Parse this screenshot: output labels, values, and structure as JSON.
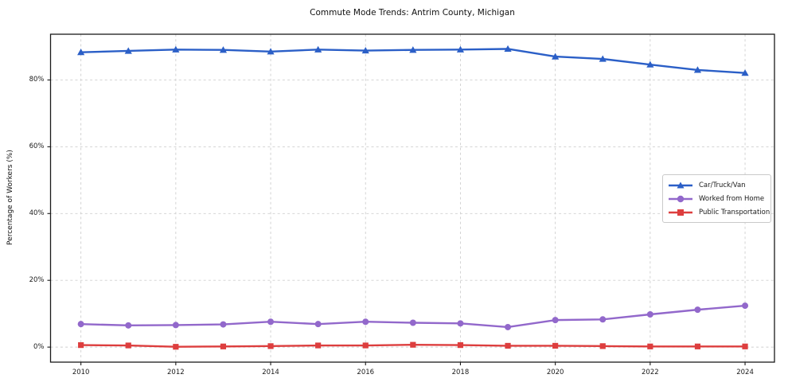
{
  "figure": {
    "title": "Commute Mode Trends: Antrim County, Michigan"
  },
  "chart_data": {
    "type": "line",
    "title": "Commute Mode Trends: Antrim County, Michigan",
    "xlabel": "",
    "ylabel": "Percentage of Workers (%)",
    "x": [
      2010,
      2011,
      2012,
      2013,
      2014,
      2015,
      2016,
      2017,
      2018,
      2019,
      2020,
      2021,
      2022,
      2023,
      2024
    ],
    "series": [
      {
        "name": "Car/Truck/Van",
        "color": "#2b5fc7",
        "marker": "triangle",
        "values": [
          88.3,
          88.7,
          89.1,
          89.0,
          88.5,
          89.1,
          88.8,
          89.0,
          89.1,
          89.3,
          87.0,
          86.3,
          84.6,
          83.0,
          82.1
        ]
      },
      {
        "name": "Worked from Home",
        "color": "#9268cb",
        "marker": "circle",
        "values": [
          6.9,
          6.5,
          6.6,
          6.8,
          7.6,
          6.9,
          7.6,
          7.3,
          7.1,
          6.0,
          8.1,
          8.3,
          9.8,
          11.2,
          12.4
        ]
      },
      {
        "name": "Public Transportation",
        "color": "#dd3e3e",
        "marker": "square",
        "values": [
          0.6,
          0.5,
          0.1,
          0.2,
          0.3,
          0.5,
          0.5,
          0.7,
          0.6,
          0.4,
          0.4,
          0.3,
          0.2,
          0.2,
          0.2
        ]
      }
    ],
    "xticks": {
      "values": [
        2010,
        2012,
        2014,
        2016,
        2018,
        2020,
        2022,
        2024
      ],
      "labels": [
        "2010",
        "2012",
        "2014",
        "2016",
        "2018",
        "2020",
        "2022",
        "2024"
      ]
    },
    "yticks": {
      "values": [
        0,
        20,
        40,
        60,
        80
      ],
      "labels": [
        "0%",
        "20%",
        "40%",
        "60%",
        "80%"
      ]
    },
    "xlim": [
      2009.36,
      2024.62
    ],
    "ylim": [
      -4.5,
      93.7
    ],
    "grid": "dashed",
    "legend_position": "center-right"
  },
  "colors": {
    "grid": "#cfcfcf",
    "axis_border": "#1a1a1a",
    "tick": "#1a1a1a",
    "background": "#ffffff"
  }
}
